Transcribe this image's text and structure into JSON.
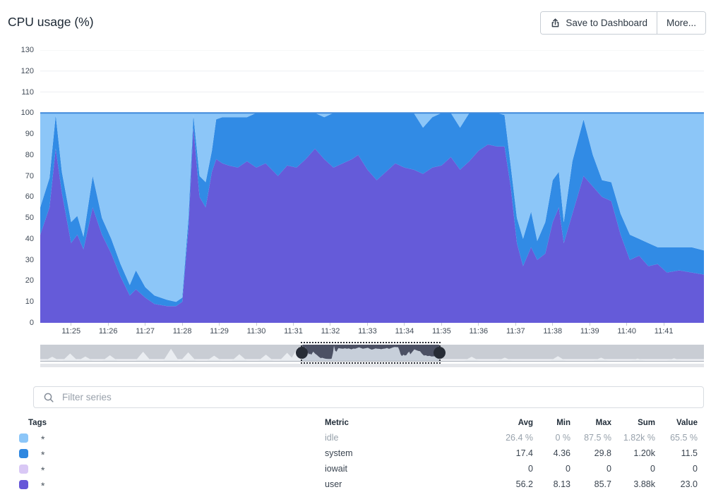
{
  "header": {
    "title": "CPU usage (%)",
    "save_button": "Save to Dashboard",
    "more_button": "More..."
  },
  "filter": {
    "placeholder": "Filter series"
  },
  "chart_data": {
    "type": "area",
    "stacked": true,
    "title": "CPU usage (%)",
    "xlabel": "",
    "ylabel": "",
    "ylim": [
      0,
      130
    ],
    "yticks": [
      0,
      10,
      20,
      30,
      40,
      50,
      60,
      70,
      80,
      90,
      100,
      110,
      120,
      130
    ],
    "x_ticks": [
      "11:25",
      "11:26",
      "11:27",
      "11:28",
      "11:29",
      "11:30",
      "11:31",
      "11:32",
      "11:33",
      "11:34",
      "11:35",
      "11:36",
      "11:37",
      "11:38",
      "11:39",
      "11:40",
      "11:41"
    ],
    "time_domain_seconds_after_11_24": [
      10,
      1085
    ],
    "series_order_bottom_to_top": [
      "user",
      "system",
      "iowait",
      "idle"
    ],
    "colors": {
      "user": "#655BD9",
      "system": "#318BE5",
      "iowait": "#D9C8F5",
      "idle": "#8CC6F8",
      "top_line": "#3E89DB"
    },
    "point_columns": [
      "t_seconds_after_11_24",
      "user",
      "system",
      "iowait",
      "idle"
    ],
    "points": [
      [
        10,
        42,
        13,
        0,
        45
      ],
      [
        25,
        55,
        14,
        0,
        31
      ],
      [
        35,
        83,
        16,
        0,
        1
      ],
      [
        45,
        62,
        10,
        0,
        28
      ],
      [
        60,
        38,
        10,
        0,
        52
      ],
      [
        70,
        42,
        9,
        0,
        49
      ],
      [
        80,
        35,
        6,
        0,
        59
      ],
      [
        95,
        55,
        15,
        0,
        30
      ],
      [
        110,
        42,
        8,
        0,
        50
      ],
      [
        125,
        33,
        7,
        0,
        60
      ],
      [
        140,
        22,
        6,
        0,
        72
      ],
      [
        155,
        13,
        5,
        0,
        82
      ],
      [
        165,
        16,
        9,
        0,
        75
      ],
      [
        180,
        12,
        5,
        0,
        83
      ],
      [
        195,
        9,
        4,
        0,
        87
      ],
      [
        215,
        8,
        3,
        0,
        89
      ],
      [
        230,
        8,
        2,
        0,
        90
      ],
      [
        240,
        10,
        2,
        0,
        88
      ],
      [
        250,
        45,
        5,
        0,
        50
      ],
      [
        258,
        93,
        6,
        0,
        1
      ],
      [
        268,
        60,
        10,
        0,
        30
      ],
      [
        278,
        55,
        12,
        0,
        33
      ],
      [
        288,
        72,
        10,
        0,
        18
      ],
      [
        295,
        78,
        19,
        0,
        3
      ],
      [
        305,
        76,
        22,
        0,
        2
      ],
      [
        315,
        75,
        23,
        0,
        2
      ],
      [
        330,
        74,
        24,
        0,
        2
      ],
      [
        345,
        77,
        21,
        0,
        2
      ],
      [
        360,
        74,
        26,
        0,
        0
      ],
      [
        375,
        76,
        24,
        0,
        0
      ],
      [
        395,
        70,
        30,
        0,
        0
      ],
      [
        410,
        75,
        25,
        0,
        0
      ],
      [
        425,
        74,
        26,
        0,
        0
      ],
      [
        440,
        78,
        22,
        0,
        0
      ],
      [
        455,
        83,
        17,
        0,
        0
      ],
      [
        470,
        78,
        20,
        0,
        2
      ],
      [
        485,
        74,
        26,
        0,
        0
      ],
      [
        500,
        76,
        24,
        0,
        0
      ],
      [
        515,
        78,
        22,
        0,
        0
      ],
      [
        525,
        80,
        20,
        0,
        0
      ],
      [
        540,
        73,
        27,
        0,
        0
      ],
      [
        555,
        68,
        32,
        0,
        0
      ],
      [
        570,
        72,
        28,
        0,
        0
      ],
      [
        585,
        76,
        24,
        0,
        0
      ],
      [
        600,
        74,
        26,
        0,
        0
      ],
      [
        615,
        73,
        27,
        0,
        0
      ],
      [
        630,
        71,
        22,
        0,
        7
      ],
      [
        645,
        74,
        24,
        0,
        2
      ],
      [
        660,
        75,
        25,
        0,
        0
      ],
      [
        675,
        79,
        21,
        0,
        0
      ],
      [
        690,
        73,
        20,
        0,
        7
      ],
      [
        705,
        77,
        23,
        0,
        0
      ],
      [
        720,
        82,
        18,
        0,
        0
      ],
      [
        735,
        85,
        15,
        0,
        0
      ],
      [
        750,
        84,
        16,
        0,
        0
      ],
      [
        762,
        84,
        15,
        0,
        1
      ],
      [
        772,
        65,
        10,
        0,
        25
      ],
      [
        782,
        38,
        12,
        0,
        50
      ],
      [
        792,
        27,
        13,
        0,
        60
      ],
      [
        805,
        36,
        17,
        0,
        47
      ],
      [
        815,
        30,
        9,
        0,
        61
      ],
      [
        828,
        33,
        15,
        0,
        52
      ],
      [
        840,
        48,
        20,
        0,
        32
      ],
      [
        850,
        55,
        17,
        0,
        28
      ],
      [
        858,
        38,
        10,
        0,
        52
      ],
      [
        872,
        52,
        25,
        0,
        23
      ],
      [
        890,
        70,
        27,
        0,
        3
      ],
      [
        905,
        65,
        15,
        0,
        20
      ],
      [
        920,
        60,
        8,
        0,
        32
      ],
      [
        935,
        58,
        9,
        0,
        33
      ],
      [
        950,
        42,
        10,
        0,
        48
      ],
      [
        965,
        30,
        12,
        0,
        58
      ],
      [
        980,
        32,
        8,
        0,
        60
      ],
      [
        995,
        27,
        11,
        0,
        62
      ],
      [
        1010,
        28,
        8,
        0,
        64
      ],
      [
        1025,
        24,
        12,
        0,
        64
      ],
      [
        1045,
        25,
        11,
        0,
        64
      ],
      [
        1065,
        24,
        12,
        0,
        64
      ],
      [
        1085,
        23,
        11.5,
        0,
        65.5
      ]
    ]
  },
  "minimap": {
    "brush_range": [
      0.395,
      0.601
    ],
    "peaks": [
      [
        0.018,
        0.28
      ],
      [
        0.045,
        0.5
      ],
      [
        0.068,
        0.3
      ],
      [
        0.105,
        0.38
      ],
      [
        0.155,
        0.62
      ],
      [
        0.197,
        0.82
      ],
      [
        0.223,
        0.58
      ],
      [
        0.262,
        0.35
      ],
      [
        0.3,
        0.45
      ],
      [
        0.34,
        0.42
      ],
      [
        0.372,
        0.55
      ],
      [
        0.388,
        0.92
      ],
      [
        0.65,
        0.28
      ],
      [
        0.7,
        0.22
      ],
      [
        0.78,
        0.32
      ],
      [
        0.845,
        0.22
      ],
      [
        0.9,
        0.16
      ],
      [
        0.955,
        0.18
      ]
    ],
    "colors": {
      "band": "#C9CDD4",
      "peak": "#EAEDF1",
      "baseline": "#EEF0F4",
      "selection_bg": "#C7CFDA",
      "selection_dark": "#4C5164",
      "handle": "#272C36"
    }
  },
  "table": {
    "headers": [
      "Tags",
      "Metric",
      "Avg",
      "Min",
      "Max",
      "Sum",
      "Value"
    ],
    "rows": [
      {
        "color": "#8CC6F8",
        "tag": "*",
        "metric": "idle",
        "avg": "26.4 %",
        "min": "0 %",
        "max": "87.5 %",
        "sum": "1.82k %",
        "value": "65.5 %",
        "muted": true
      },
      {
        "color": "#2E87E0",
        "tag": "*",
        "metric": "system",
        "avg": "17.4",
        "min": "4.36",
        "max": "29.8",
        "sum": "1.20k",
        "value": "11.5",
        "muted": false
      },
      {
        "color": "#D9C8F5",
        "tag": "*",
        "metric": "iowait",
        "avg": "0",
        "min": "0",
        "max": "0",
        "sum": "0",
        "value": "0",
        "muted": false
      },
      {
        "color": "#6656D8",
        "tag": "*",
        "metric": "user",
        "avg": "56.2",
        "min": "8.13",
        "max": "85.7",
        "sum": "3.88k",
        "value": "23.0",
        "muted": false
      }
    ]
  }
}
